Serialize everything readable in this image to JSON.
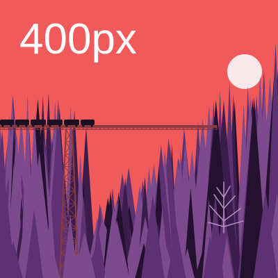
{
  "overlay": {
    "size_label": "400px"
  },
  "colors": {
    "sky": "#f05a5a",
    "moon": "#f7e9ea",
    "tree_light": "#7d4a8e",
    "tree_mid": "#5e3272",
    "tree_dark": "#3a1d4c",
    "tree_darkest": "#24112f",
    "bridge": "#8b3b3f",
    "train": "#1b0f22",
    "bare_tree": "#b58fc4"
  },
  "scene": {
    "elements": [
      "moon",
      "bridge",
      "tower",
      "train",
      "left-forest",
      "right-forest",
      "bare-tree"
    ]
  }
}
